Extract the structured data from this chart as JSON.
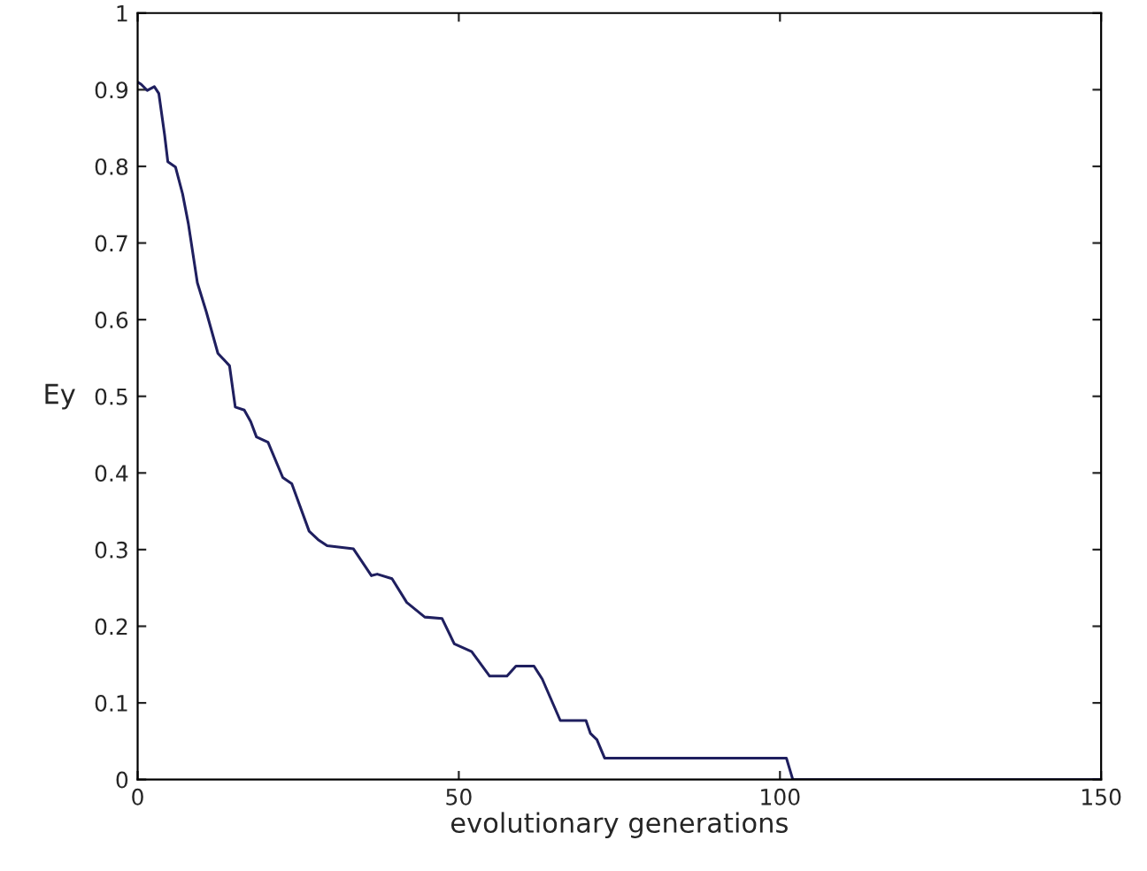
{
  "chart_data": {
    "type": "line",
    "xlabel": "evolutionary generations",
    "ylabel": "Ey",
    "xlim": [
      0,
      150
    ],
    "xticks": [
      0,
      50,
      100,
      150
    ],
    "ylim": [
      0,
      1
    ],
    "yticks": [
      0,
      0.1,
      0.2,
      0.3,
      0.4,
      0.5,
      0.6,
      0.7,
      0.8,
      0.9,
      1
    ],
    "grid": false,
    "marker": "none",
    "line_style": "solid",
    "series": [
      {
        "color": "#1f1f5f",
        "x": [
          0,
          0.55,
          1.5,
          2.6,
          3.3,
          4.2,
          4.7,
          5.9,
          7.0,
          7.9,
          9.3,
          10.7,
          12.5,
          14.3,
          15.2,
          16.6,
          17.6,
          18.5,
          20.3,
          22.6,
          24.0,
          26.7,
          28.1,
          29.5,
          33.6,
          36.4,
          37.3,
          39.6,
          41.9,
          44.7,
          47.4,
          49.3,
          52.0,
          54.8,
          57.5,
          58.9,
          61.7,
          63.0,
          65.8,
          69.8,
          70.5,
          71.5,
          72.7,
          101,
          102,
          150
        ],
        "values": [
          0.91,
          0.907,
          0.899,
          0.904,
          0.895,
          0.841,
          0.806,
          0.799,
          0.764,
          0.725,
          0.648,
          0.61,
          0.556,
          0.54,
          0.486,
          0.482,
          0.467,
          0.447,
          0.44,
          0.394,
          0.386,
          0.324,
          0.313,
          0.305,
          0.301,
          0.266,
          0.268,
          0.262,
          0.231,
          0.212,
          0.21,
          0.177,
          0.167,
          0.135,
          0.135,
          0.148,
          0.148,
          0.131,
          0.077,
          0.077,
          0.06,
          0.052,
          0.028,
          0.028,
          0,
          0
        ]
      }
    ]
  }
}
